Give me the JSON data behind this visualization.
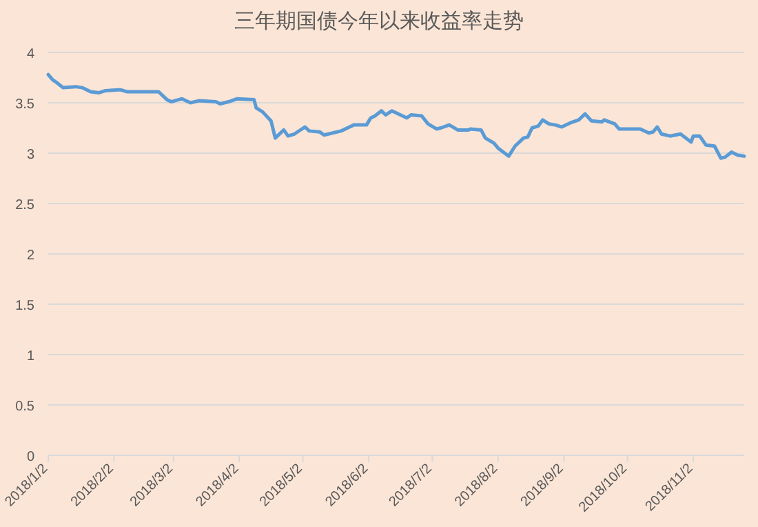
{
  "chart_data": {
    "type": "line",
    "title": "三年期国债今年以来收益率走势",
    "x": [
      "2018-01-02",
      "2018-01-04",
      "2018-01-06",
      "2018-01-09",
      "2018-01-15",
      "2018-01-18",
      "2018-01-22",
      "2018-01-26",
      "2018-01-29",
      "2018-02-05",
      "2018-02-08",
      "2018-02-23",
      "2018-02-27",
      "2018-03-01",
      "2018-03-06",
      "2018-03-10",
      "2018-03-14",
      "2018-03-22",
      "2018-03-24",
      "2018-03-28",
      "2018-04-01",
      "2018-04-09",
      "2018-04-10",
      "2018-04-13",
      "2018-04-17",
      "2018-04-19",
      "2018-04-20",
      "2018-04-23",
      "2018-04-25",
      "2018-04-28",
      "2018-05-03",
      "2018-05-05",
      "2018-05-10",
      "2018-05-12",
      "2018-05-20",
      "2018-05-26",
      "2018-06-01",
      "2018-06-03",
      "2018-06-05",
      "2018-06-08",
      "2018-06-10",
      "2018-06-13",
      "2018-06-20",
      "2018-06-22",
      "2018-06-27",
      "2018-06-30",
      "2018-07-04",
      "2018-07-06",
      "2018-07-10",
      "2018-07-14",
      "2018-07-19",
      "2018-07-20",
      "2018-07-25",
      "2018-07-27",
      "2018-07-31",
      "2018-08-02",
      "2018-08-07",
      "2018-08-10",
      "2018-08-14",
      "2018-08-16",
      "2018-08-18",
      "2018-08-21",
      "2018-08-23",
      "2018-08-26",
      "2018-08-29",
      "2018-09-01",
      "2018-09-05",
      "2018-09-09",
      "2018-09-12",
      "2018-09-15",
      "2018-09-20",
      "2018-09-21",
      "2018-09-26",
      "2018-09-28",
      "2018-10-08",
      "2018-10-12",
      "2018-10-14",
      "2018-10-16",
      "2018-10-18",
      "2018-10-22",
      "2018-10-27",
      "2018-11-01",
      "2018-11-02",
      "2018-11-05",
      "2018-11-08",
      "2018-11-12",
      "2018-11-15",
      "2018-11-17",
      "2018-11-20",
      "2018-11-23",
      "2018-11-26"
    ],
    "series": [
      {
        "color": "#5b9bd5",
        "values": [
          3.78,
          3.73,
          3.7,
          3.65,
          3.66,
          3.65,
          3.61,
          3.6,
          3.62,
          3.63,
          3.61,
          3.61,
          3.53,
          3.51,
          3.54,
          3.5,
          3.52,
          3.51,
          3.49,
          3.51,
          3.54,
          3.53,
          3.45,
          3.41,
          3.32,
          3.15,
          3.17,
          3.23,
          3.17,
          3.19,
          3.26,
          3.22,
          3.21,
          3.18,
          3.22,
          3.28,
          3.28,
          3.35,
          3.37,
          3.42,
          3.38,
          3.42,
          3.35,
          3.38,
          3.37,
          3.29,
          3.24,
          3.25,
          3.28,
          3.23,
          3.23,
          3.24,
          3.23,
          3.15,
          3.1,
          3.05,
          2.97,
          3.07,
          3.15,
          3.16,
          3.25,
          3.27,
          3.33,
          3.29,
          3.28,
          3.26,
          3.3,
          3.33,
          3.39,
          3.32,
          3.31,
          3.33,
          3.29,
          3.24,
          3.24,
          3.2,
          3.21,
          3.26,
          3.19,
          3.17,
          3.19,
          3.11,
          3.17,
          3.17,
          3.08,
          3.07,
          2.95,
          2.96,
          3.01,
          2.98,
          2.97
        ]
      }
    ],
    "xlim": [
      "2018-01-02",
      "2018-11-26"
    ],
    "xticks": [
      {
        "value": "2018-01-02",
        "label": "2018/1/2"
      },
      {
        "value": "2018-02-02",
        "label": "2018/2/2"
      },
      {
        "value": "2018-03-02",
        "label": "2018/3/2"
      },
      {
        "value": "2018-04-02",
        "label": "2018/4/2"
      },
      {
        "value": "2018-05-02",
        "label": "2018/5/2"
      },
      {
        "value": "2018-06-02",
        "label": "2018/6/2"
      },
      {
        "value": "2018-07-02",
        "label": "2018/7/2"
      },
      {
        "value": "2018-08-02",
        "label": "2018/8/2"
      },
      {
        "value": "2018-09-02",
        "label": "2018/9/2"
      },
      {
        "value": "2018-10-02",
        "label": "2018/10/2"
      },
      {
        "value": "2018-11-02",
        "label": "2018/11/2"
      }
    ],
    "ylim": [
      0,
      4
    ],
    "yticks": [
      0,
      0.5,
      1,
      1.5,
      2,
      2.5,
      3,
      3.5,
      4
    ],
    "grid": "y",
    "marker": "none",
    "line_style": "solid"
  }
}
